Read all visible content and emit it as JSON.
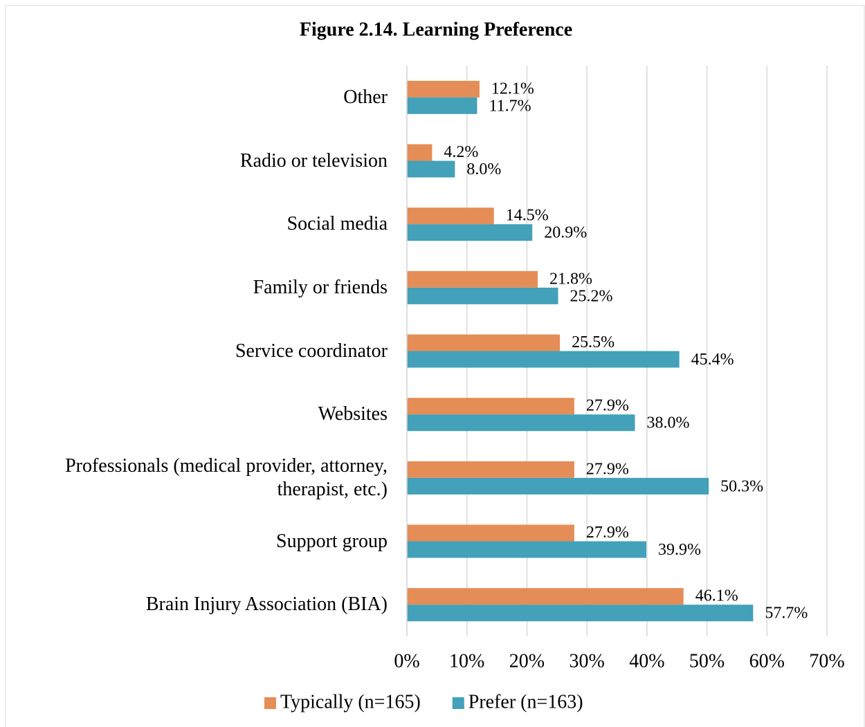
{
  "chart_data": {
    "type": "hbar",
    "title": "Figure 2.14. Learning Preference",
    "categories": [
      "Other",
      "Radio or television",
      "Social media",
      "Family or friends",
      "Service coordinator",
      "Websites",
      "Professionals (medical provider, attorney, therapist, etc.)",
      "Support group",
      "Brain Injury Association (BIA)"
    ],
    "series": [
      {
        "name": "Typically (n=165)",
        "color": "#e58d57",
        "values": [
          12.1,
          4.2,
          14.5,
          21.8,
          25.5,
          27.9,
          27.9,
          27.9,
          46.1
        ],
        "value_labels": [
          "12.1%",
          "4.2%",
          "14.5%",
          "21.8%",
          "25.5%",
          "27.9%",
          "27.9%",
          "27.9%",
          "46.1%"
        ]
      },
      {
        "name": "Prefer (n=163)",
        "color": "#43a1b9",
        "values": [
          11.7,
          8.0,
          20.9,
          25.2,
          45.4,
          38.0,
          50.3,
          39.9,
          57.7
        ],
        "value_labels": [
          "11.7%",
          "8.0%",
          "20.9%",
          "25.2%",
          "45.4%",
          "38.0%",
          "50.3%",
          "39.9%",
          "57.7%"
        ]
      }
    ],
    "xlim": [
      0,
      70
    ],
    "xticks": [
      {
        "value": 0,
        "label": "0%"
      },
      {
        "value": 10,
        "label": "10%"
      },
      {
        "value": 20,
        "label": "20%"
      },
      {
        "value": 30,
        "label": "30%"
      },
      {
        "value": 40,
        "label": "40%"
      },
      {
        "value": 50,
        "label": "50%"
      },
      {
        "value": 60,
        "label": "60%"
      },
      {
        "value": 70,
        "label": "70%"
      }
    ],
    "grid": true,
    "legend": "bottom"
  }
}
